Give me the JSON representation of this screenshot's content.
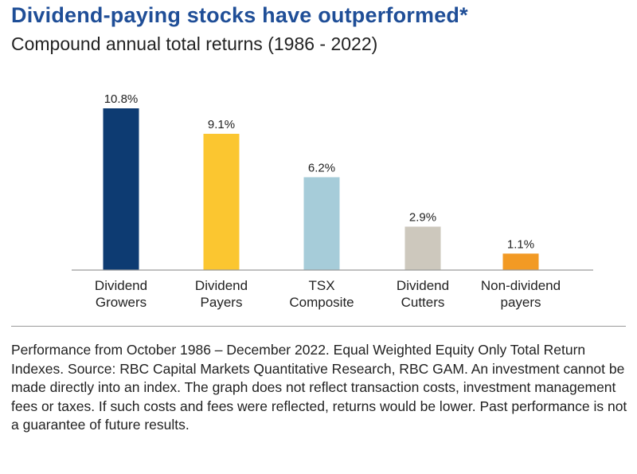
{
  "header": {
    "title": "Dividend-paying stocks have outperformed*",
    "subtitle": "Compound annual total returns (1986 - 2022)"
  },
  "chart_data": {
    "type": "bar",
    "categories": [
      [
        "Dividend",
        "Growers"
      ],
      [
        "Dividend",
        "Payers"
      ],
      [
        "TSX",
        "Composite"
      ],
      [
        "Dividend",
        "Cutters"
      ],
      [
        "Non-dividend",
        "payers"
      ]
    ],
    "values": [
      10.8,
      9.1,
      6.2,
      2.9,
      1.1
    ],
    "data_labels": [
      "10.8%",
      "9.1%",
      "6.2%",
      "2.9%",
      "1.1%"
    ],
    "colors": [
      "#0d3b72",
      "#fbc630",
      "#a6ccd9",
      "#cdc8bd",
      "#f29a24"
    ],
    "ylim": [
      0,
      10.8
    ],
    "grid": false,
    "legend": "none"
  },
  "footnote": {
    "text": "Performance from October 1986 – December 2022. Equal Weighted Equity Only Total Return Indexes. Source: RBC Capital Markets Quantitative Research, RBC GAM. An investment cannot be made directly into an index. The graph does not reflect transaction costs, investment management fees or taxes. If such costs and fees were reflected, returns would be lower. Past performance is not a guarantee of future results."
  }
}
